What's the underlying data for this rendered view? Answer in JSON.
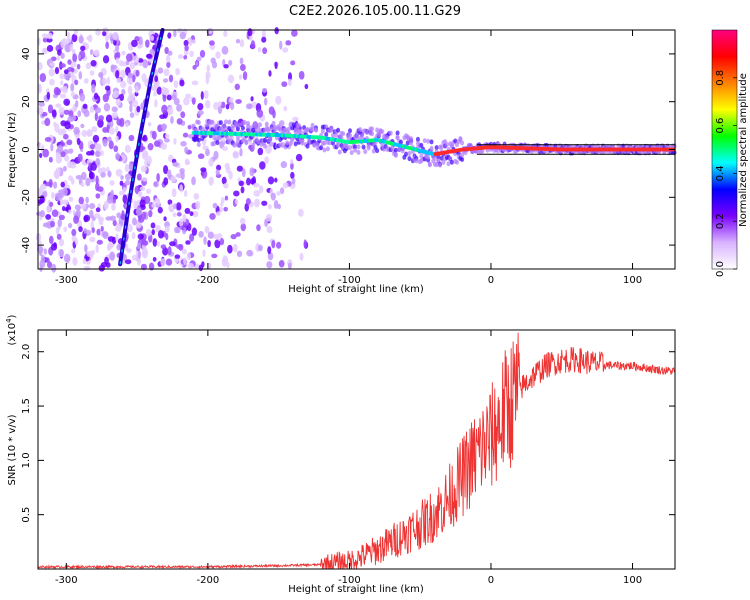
{
  "title": "C2E2.2026.105.00.11.G29",
  "chart_data": [
    {
      "type": "heatmap",
      "xlabel": "Height of straight line (km)",
      "ylabel": "Frequency (Hz)",
      "xlim": [
        -320,
        130
      ],
      "ylim": [
        -50,
        50
      ],
      "xticks": [
        -300,
        -200,
        -100,
        0,
        100
      ],
      "yticks": [
        -40,
        -20,
        0,
        20,
        40
      ],
      "colorbar": {
        "label": "Normalized spectral amplitude",
        "range": [
          0,
          1
        ],
        "ticks": [
          0.0,
          0.2,
          0.4,
          0.6,
          0.8
        ],
        "tick_labels": [
          "0.0",
          "0.2",
          "0.4",
          "0.6",
          "0.8"
        ],
        "colors": [
          "#ffffff",
          "#d9b3ff",
          "#7a00ff",
          "#0000ff",
          "#00ffff",
          "#00ff00",
          "#ffff00",
          "#ff8000",
          "#ff0000",
          "#ff0080"
        ]
      },
      "reference_lines_hz": [
        2,
        -2
      ],
      "ridge": {
        "description_points": [
          {
            "x": -210,
            "y": 7
          },
          {
            "x": -150,
            "y": 6
          },
          {
            "x": -120,
            "y": 5
          },
          {
            "x": -100,
            "y": 3
          },
          {
            "x": -80,
            "y": 4
          },
          {
            "x": -60,
            "y": 1
          },
          {
            "x": -40,
            "y": -2
          },
          {
            "x": -20,
            "y": 0
          },
          {
            "x": 0,
            "y": 1
          },
          {
            "x": 50,
            "y": 0
          },
          {
            "x": 100,
            "y": 0
          },
          {
            "x": 130,
            "y": 0
          }
        ]
      },
      "steep_feature": [
        {
          "x": -262,
          "y": -48
        },
        {
          "x": -255,
          "y": -20
        },
        {
          "x": -248,
          "y": 5
        },
        {
          "x": -240,
          "y": 30
        },
        {
          "x": -232,
          "y": 50
        }
      ]
    },
    {
      "type": "line",
      "xlabel": "Height of straight line (km)",
      "ylabel": "SNR (10 * v/v)",
      "multiplier_label_base": "(x10",
      "multiplier_label_exp": "4",
      "multiplier_label_close": ")",
      "xlim": [
        -320,
        130
      ],
      "ylim": [
        0,
        2.2
      ],
      "xticks": [
        -300,
        -200,
        -100,
        0,
        100
      ],
      "yticks": [
        0.5,
        1.0,
        1.5,
        2.0
      ],
      "ytick_labels": [
        "0.5",
        "1.0",
        "1.5",
        "2.0"
      ],
      "color": "#ee3333",
      "series": [
        {
          "x": [
            -320,
            -250,
            -200,
            -150,
            -120,
            -100,
            -90,
            -80,
            -70,
            -60,
            -50,
            -40,
            -30,
            -20,
            -10,
            0,
            10,
            20,
            30,
            40,
            50,
            60,
            70,
            80,
            90,
            100,
            110,
            120,
            130
          ],
          "values": [
            0.02,
            0.02,
            0.02,
            0.03,
            0.04,
            0.07,
            0.12,
            0.18,
            0.25,
            0.33,
            0.4,
            0.5,
            0.65,
            0.85,
            1.05,
            1.2,
            1.45,
            1.65,
            1.78,
            1.88,
            1.92,
            1.93,
            1.9,
            1.88,
            1.87,
            1.87,
            1.85,
            1.83,
            1.82
          ]
        }
      ]
    }
  ]
}
